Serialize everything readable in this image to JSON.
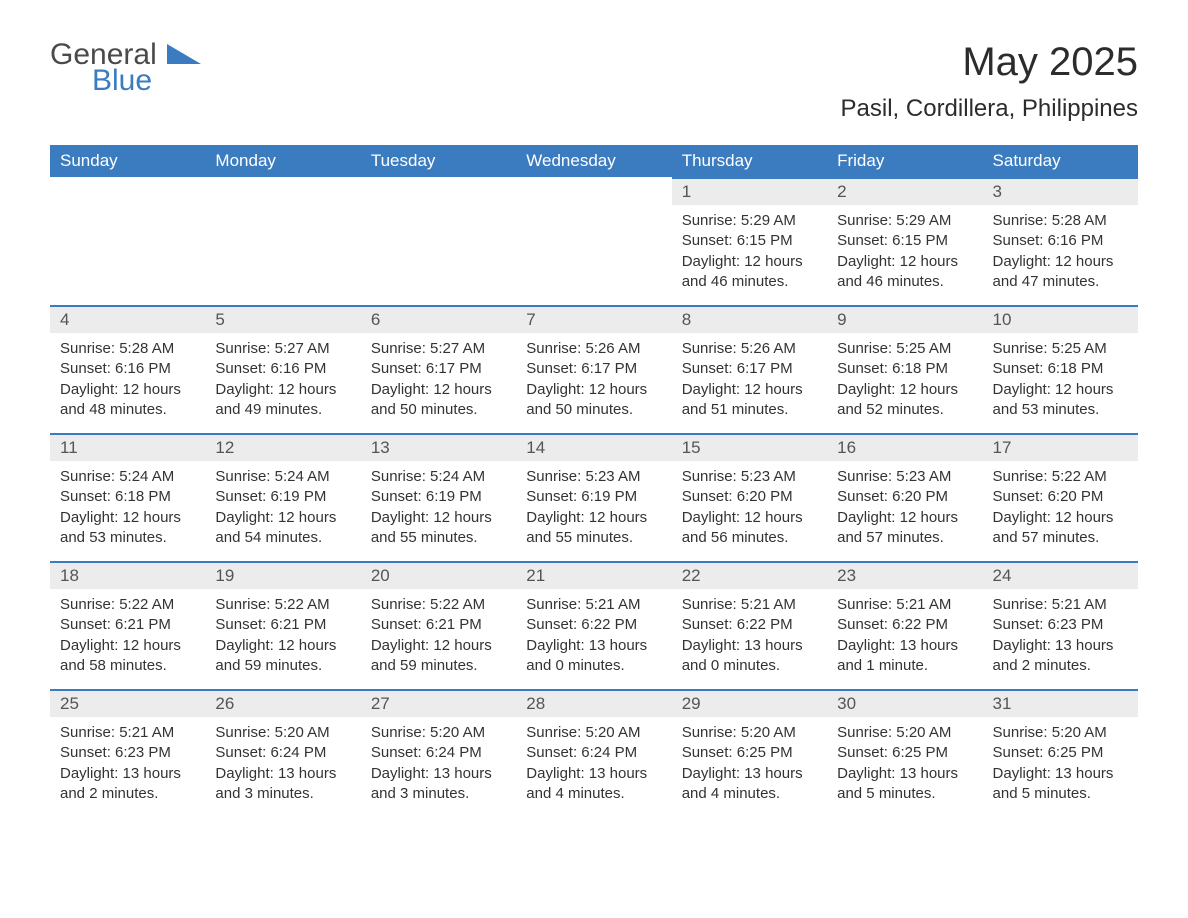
{
  "logo": {
    "general": "General",
    "blue": "Blue"
  },
  "title": "May 2025",
  "location": "Pasil, Cordillera, Philippines",
  "colors": {
    "header_bg": "#3b7bbf",
    "header_text": "#ffffff",
    "daynum_bg": "#ececec",
    "daynum_text": "#555555",
    "body_text": "#333333",
    "row_border": "#3b7bbf",
    "page_bg": "#ffffff",
    "logo_gray": "#4a4a4a",
    "logo_blue": "#3b7bbf"
  },
  "typography": {
    "title_fontsize": 40,
    "location_fontsize": 24,
    "header_fontsize": 17,
    "daynum_fontsize": 17,
    "detail_fontsize": 15,
    "logo_fontsize": 30,
    "font_family": "Arial"
  },
  "calendar": {
    "columns": [
      "Sunday",
      "Monday",
      "Tuesday",
      "Wednesday",
      "Thursday",
      "Friday",
      "Saturday"
    ],
    "weeks": [
      [
        null,
        null,
        null,
        null,
        {
          "day": "1",
          "sunrise": "Sunrise: 5:29 AM",
          "sunset": "Sunset: 6:15 PM",
          "daylight": "Daylight: 12 hours and 46 minutes."
        },
        {
          "day": "2",
          "sunrise": "Sunrise: 5:29 AM",
          "sunset": "Sunset: 6:15 PM",
          "daylight": "Daylight: 12 hours and 46 minutes."
        },
        {
          "day": "3",
          "sunrise": "Sunrise: 5:28 AM",
          "sunset": "Sunset: 6:16 PM",
          "daylight": "Daylight: 12 hours and 47 minutes."
        }
      ],
      [
        {
          "day": "4",
          "sunrise": "Sunrise: 5:28 AM",
          "sunset": "Sunset: 6:16 PM",
          "daylight": "Daylight: 12 hours and 48 minutes."
        },
        {
          "day": "5",
          "sunrise": "Sunrise: 5:27 AM",
          "sunset": "Sunset: 6:16 PM",
          "daylight": "Daylight: 12 hours and 49 minutes."
        },
        {
          "day": "6",
          "sunrise": "Sunrise: 5:27 AM",
          "sunset": "Sunset: 6:17 PM",
          "daylight": "Daylight: 12 hours and 50 minutes."
        },
        {
          "day": "7",
          "sunrise": "Sunrise: 5:26 AM",
          "sunset": "Sunset: 6:17 PM",
          "daylight": "Daylight: 12 hours and 50 minutes."
        },
        {
          "day": "8",
          "sunrise": "Sunrise: 5:26 AM",
          "sunset": "Sunset: 6:17 PM",
          "daylight": "Daylight: 12 hours and 51 minutes."
        },
        {
          "day": "9",
          "sunrise": "Sunrise: 5:25 AM",
          "sunset": "Sunset: 6:18 PM",
          "daylight": "Daylight: 12 hours and 52 minutes."
        },
        {
          "day": "10",
          "sunrise": "Sunrise: 5:25 AM",
          "sunset": "Sunset: 6:18 PM",
          "daylight": "Daylight: 12 hours and 53 minutes."
        }
      ],
      [
        {
          "day": "11",
          "sunrise": "Sunrise: 5:24 AM",
          "sunset": "Sunset: 6:18 PM",
          "daylight": "Daylight: 12 hours and 53 minutes."
        },
        {
          "day": "12",
          "sunrise": "Sunrise: 5:24 AM",
          "sunset": "Sunset: 6:19 PM",
          "daylight": "Daylight: 12 hours and 54 minutes."
        },
        {
          "day": "13",
          "sunrise": "Sunrise: 5:24 AM",
          "sunset": "Sunset: 6:19 PM",
          "daylight": "Daylight: 12 hours and 55 minutes."
        },
        {
          "day": "14",
          "sunrise": "Sunrise: 5:23 AM",
          "sunset": "Sunset: 6:19 PM",
          "daylight": "Daylight: 12 hours and 55 minutes."
        },
        {
          "day": "15",
          "sunrise": "Sunrise: 5:23 AM",
          "sunset": "Sunset: 6:20 PM",
          "daylight": "Daylight: 12 hours and 56 minutes."
        },
        {
          "day": "16",
          "sunrise": "Sunrise: 5:23 AM",
          "sunset": "Sunset: 6:20 PM",
          "daylight": "Daylight: 12 hours and 57 minutes."
        },
        {
          "day": "17",
          "sunrise": "Sunrise: 5:22 AM",
          "sunset": "Sunset: 6:20 PM",
          "daylight": "Daylight: 12 hours and 57 minutes."
        }
      ],
      [
        {
          "day": "18",
          "sunrise": "Sunrise: 5:22 AM",
          "sunset": "Sunset: 6:21 PM",
          "daylight": "Daylight: 12 hours and 58 minutes."
        },
        {
          "day": "19",
          "sunrise": "Sunrise: 5:22 AM",
          "sunset": "Sunset: 6:21 PM",
          "daylight": "Daylight: 12 hours and 59 minutes."
        },
        {
          "day": "20",
          "sunrise": "Sunrise: 5:22 AM",
          "sunset": "Sunset: 6:21 PM",
          "daylight": "Daylight: 12 hours and 59 minutes."
        },
        {
          "day": "21",
          "sunrise": "Sunrise: 5:21 AM",
          "sunset": "Sunset: 6:22 PM",
          "daylight": "Daylight: 13 hours and 0 minutes."
        },
        {
          "day": "22",
          "sunrise": "Sunrise: 5:21 AM",
          "sunset": "Sunset: 6:22 PM",
          "daylight": "Daylight: 13 hours and 0 minutes."
        },
        {
          "day": "23",
          "sunrise": "Sunrise: 5:21 AM",
          "sunset": "Sunset: 6:22 PM",
          "daylight": "Daylight: 13 hours and 1 minute."
        },
        {
          "day": "24",
          "sunrise": "Sunrise: 5:21 AM",
          "sunset": "Sunset: 6:23 PM",
          "daylight": "Daylight: 13 hours and 2 minutes."
        }
      ],
      [
        {
          "day": "25",
          "sunrise": "Sunrise: 5:21 AM",
          "sunset": "Sunset: 6:23 PM",
          "daylight": "Daylight: 13 hours and 2 minutes."
        },
        {
          "day": "26",
          "sunrise": "Sunrise: 5:20 AM",
          "sunset": "Sunset: 6:24 PM",
          "daylight": "Daylight: 13 hours and 3 minutes."
        },
        {
          "day": "27",
          "sunrise": "Sunrise: 5:20 AM",
          "sunset": "Sunset: 6:24 PM",
          "daylight": "Daylight: 13 hours and 3 minutes."
        },
        {
          "day": "28",
          "sunrise": "Sunrise: 5:20 AM",
          "sunset": "Sunset: 6:24 PM",
          "daylight": "Daylight: 13 hours and 4 minutes."
        },
        {
          "day": "29",
          "sunrise": "Sunrise: 5:20 AM",
          "sunset": "Sunset: 6:25 PM",
          "daylight": "Daylight: 13 hours and 4 minutes."
        },
        {
          "day": "30",
          "sunrise": "Sunrise: 5:20 AM",
          "sunset": "Sunset: 6:25 PM",
          "daylight": "Daylight: 13 hours and 5 minutes."
        },
        {
          "day": "31",
          "sunrise": "Sunrise: 5:20 AM",
          "sunset": "Sunset: 6:25 PM",
          "daylight": "Daylight: 13 hours and 5 minutes."
        }
      ]
    ]
  }
}
